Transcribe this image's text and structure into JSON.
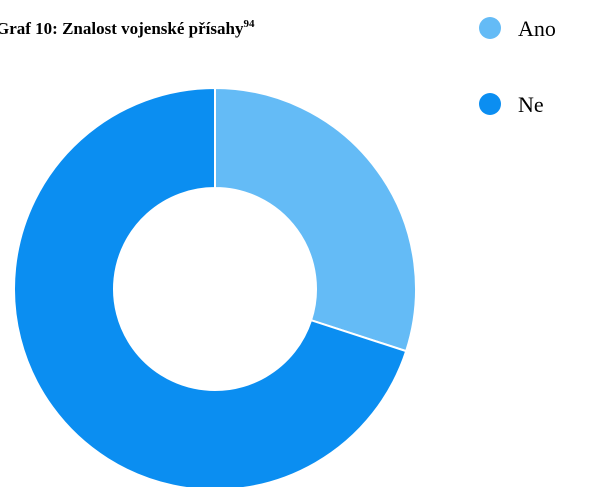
{
  "chart_data": {
    "type": "pie",
    "title": "Graf 10: Znalost vojenské přísahy",
    "title_superscript": "94",
    "categories": [
      "Ano",
      "Ne"
    ],
    "values": [
      30,
      70
    ],
    "colors": [
      "#64bbf6",
      "#0b8ef1"
    ],
    "donut": true,
    "legend": "top-right"
  }
}
